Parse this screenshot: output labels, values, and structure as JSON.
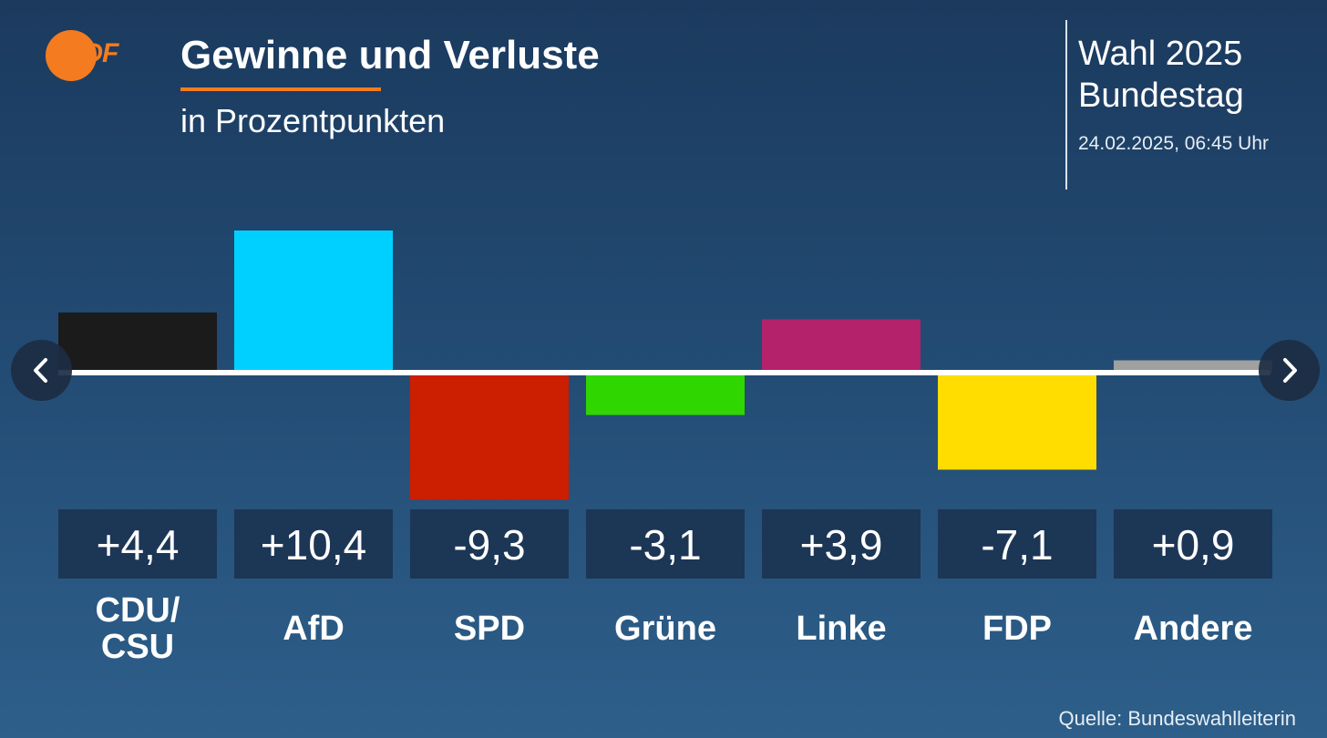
{
  "header": {
    "logo_text": "ZDF",
    "title": "Gewinne und Verluste",
    "subtitle": "in Prozentpunkten"
  },
  "election": {
    "line1": "Wahl 2025",
    "line2": "Bundestag",
    "timestamp": "24.02.2025, 06:45 Uhr"
  },
  "navigation": {
    "prev_icon": "chevron-left-icon",
    "next_icon": "chevron-right-icon"
  },
  "source": "Quelle: Bundeswahlleiterin",
  "chart_data": {
    "type": "bar",
    "title": "Gewinne und Verluste",
    "subtitle": "in Prozentpunkten",
    "categories": [
      "CDU/\nCSU",
      "AfD",
      "SPD",
      "Grüne",
      "Linke",
      "FDP",
      "Andere"
    ],
    "values": [
      4.4,
      10.4,
      -9.3,
      -3.1,
      3.9,
      -7.1,
      0.9
    ],
    "value_labels": [
      "+4,4",
      "+10,4",
      "-9,3",
      "-3,1",
      "+3,9",
      "-7,1",
      "+0,9"
    ],
    "colors": [
      "#1b1b1b",
      "#00d0ff",
      "#cc1e00",
      "#2fd600",
      "#b3226b",
      "#ffdd00",
      "#a0a0a0"
    ],
    "ylim": [
      -10,
      11
    ],
    "baseline": 0,
    "grid": false,
    "legend": false
  }
}
